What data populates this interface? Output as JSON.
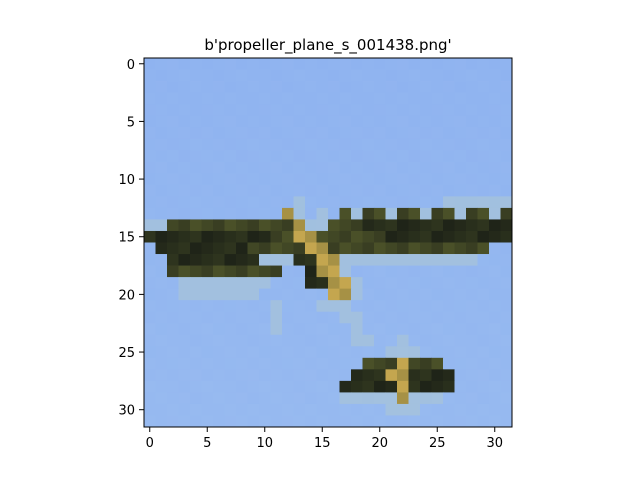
{
  "figure": {
    "title": "b'propeller_plane_s_001438.png'"
  },
  "image": {
    "rows": 32,
    "cols": 32,
    "sky_color": "#8fb3f0",
    "dark_color": "#1f2418",
    "olive_color": "#4a5028",
    "yellow_color": "#c4a64f",
    "light_color": "#a8c4d8"
  },
  "axes": {
    "x_ticks": [
      "0",
      "5",
      "10",
      "15",
      "20",
      "25",
      "30"
    ],
    "y_ticks": [
      "0",
      "5",
      "10",
      "15",
      "20",
      "25",
      "30"
    ],
    "xlim": [
      -0.5,
      31.5
    ],
    "ylim": [
      31.5,
      -0.5
    ]
  }
}
